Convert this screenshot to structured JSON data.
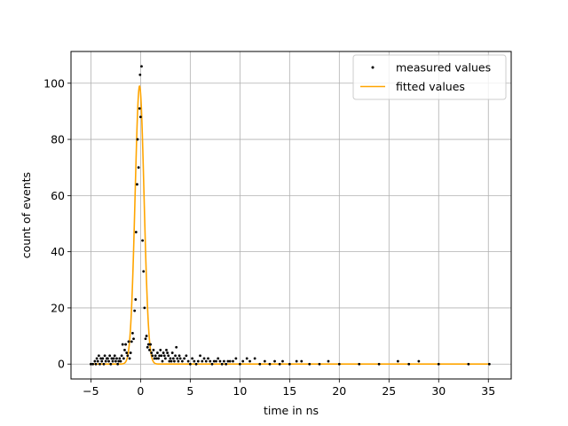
{
  "chart_data": {
    "type": "scatter",
    "xlabel": "time in ns",
    "ylabel": "count of events",
    "xlim": [
      -7.0,
      37.3
    ],
    "ylim": [
      -5.3,
      111.3
    ],
    "xticks": [
      -5,
      0,
      5,
      10,
      15,
      20,
      25,
      30,
      35
    ],
    "yticks": [
      0,
      20,
      40,
      60,
      80,
      100
    ],
    "grid": true,
    "legend_position": "top-right",
    "colors": {
      "measured": "#000000",
      "fitted": "#ffa500",
      "grid": "#b0b0b0"
    },
    "series": [
      {
        "name": "measured values",
        "type": "scatter",
        "points": [
          [
            -5.0,
            0
          ],
          [
            -4.8,
            0
          ],
          [
            -4.6,
            1
          ],
          [
            -4.5,
            0
          ],
          [
            -4.4,
            2
          ],
          [
            -4.3,
            1
          ],
          [
            -4.2,
            3
          ],
          [
            -4.1,
            0
          ],
          [
            -4.0,
            2
          ],
          [
            -3.9,
            1
          ],
          [
            -3.8,
            2
          ],
          [
            -3.7,
            0
          ],
          [
            -3.6,
            3
          ],
          [
            -3.5,
            1
          ],
          [
            -3.4,
            2
          ],
          [
            -3.3,
            2
          ],
          [
            -3.2,
            1
          ],
          [
            -3.1,
            3
          ],
          [
            -3.0,
            0
          ],
          [
            -2.9,
            2
          ],
          [
            -2.8,
            1
          ],
          [
            -2.7,
            2
          ],
          [
            -2.6,
            3
          ],
          [
            -2.5,
            1
          ],
          [
            -2.4,
            2
          ],
          [
            -2.3,
            0
          ],
          [
            -2.2,
            1
          ],
          [
            -2.1,
            2
          ],
          [
            -2.0,
            1
          ],
          [
            -1.9,
            3
          ],
          [
            -1.8,
            7
          ],
          [
            -1.7,
            2
          ],
          [
            -1.6,
            5
          ],
          [
            -1.5,
            7
          ],
          [
            -1.4,
            4
          ],
          [
            -1.3,
            3
          ],
          [
            -1.2,
            8
          ],
          [
            -1.1,
            2
          ],
          [
            -1.0,
            4
          ],
          [
            -0.9,
            8
          ],
          [
            -0.8,
            11
          ],
          [
            -0.7,
            9
          ],
          [
            -0.6,
            19
          ],
          [
            -0.5,
            23
          ],
          [
            -0.45,
            47
          ],
          [
            -0.35,
            64
          ],
          [
            -0.3,
            80
          ],
          [
            -0.2,
            70
          ],
          [
            -0.1,
            91
          ],
          [
            -0.05,
            103
          ],
          [
            0.0,
            88
          ],
          [
            0.1,
            106
          ],
          [
            0.2,
            44
          ],
          [
            0.3,
            33
          ],
          [
            0.4,
            20
          ],
          [
            0.5,
            9
          ],
          [
            0.6,
            10
          ],
          [
            0.7,
            6
          ],
          [
            0.8,
            7
          ],
          [
            0.9,
            5
          ],
          [
            1.0,
            7
          ],
          [
            1.1,
            4
          ],
          [
            1.2,
            3
          ],
          [
            1.3,
            5
          ],
          [
            1.4,
            2
          ],
          [
            1.5,
            3
          ],
          [
            1.6,
            2
          ],
          [
            1.7,
            4
          ],
          [
            1.8,
            2
          ],
          [
            1.9,
            3
          ],
          [
            2.0,
            5
          ],
          [
            2.1,
            3
          ],
          [
            2.2,
            1
          ],
          [
            2.3,
            4
          ],
          [
            2.4,
            3
          ],
          [
            2.5,
            2
          ],
          [
            2.6,
            5
          ],
          [
            2.7,
            4
          ],
          [
            2.8,
            3
          ],
          [
            2.9,
            1
          ],
          [
            3.0,
            2
          ],
          [
            3.1,
            1
          ],
          [
            3.2,
            4
          ],
          [
            3.3,
            2
          ],
          [
            3.4,
            1
          ],
          [
            3.5,
            3
          ],
          [
            3.6,
            6
          ],
          [
            3.7,
            2
          ],
          [
            3.8,
            1
          ],
          [
            3.9,
            3
          ],
          [
            4.0,
            2
          ],
          [
            4.2,
            1
          ],
          [
            4.4,
            2
          ],
          [
            4.6,
            3
          ],
          [
            4.8,
            1
          ],
          [
            5.0,
            0
          ],
          [
            5.2,
            2
          ],
          [
            5.4,
            1
          ],
          [
            5.6,
            0
          ],
          [
            5.8,
            1
          ],
          [
            6.0,
            3
          ],
          [
            6.2,
            1
          ],
          [
            6.4,
            2
          ],
          [
            6.6,
            1
          ],
          [
            6.8,
            2
          ],
          [
            7.0,
            1
          ],
          [
            7.2,
            0
          ],
          [
            7.4,
            1
          ],
          [
            7.6,
            1
          ],
          [
            7.8,
            2
          ],
          [
            8.0,
            1
          ],
          [
            8.2,
            0
          ],
          [
            8.4,
            1
          ],
          [
            8.6,
            0
          ],
          [
            8.8,
            1
          ],
          [
            9.0,
            1
          ],
          [
            9.3,
            1
          ],
          [
            9.6,
            2
          ],
          [
            10.0,
            0
          ],
          [
            10.3,
            1
          ],
          [
            10.7,
            2
          ],
          [
            11.0,
            1
          ],
          [
            11.5,
            2
          ],
          [
            12.0,
            0
          ],
          [
            12.5,
            1
          ],
          [
            13.0,
            0
          ],
          [
            13.5,
            1
          ],
          [
            14.0,
            0
          ],
          [
            14.3,
            1
          ],
          [
            15.0,
            0
          ],
          [
            15.7,
            1
          ],
          [
            16.2,
            1
          ],
          [
            17.0,
            0
          ],
          [
            18.0,
            0
          ],
          [
            18.9,
            1
          ],
          [
            20.0,
            0
          ],
          [
            22.0,
            0
          ],
          [
            24.0,
            0
          ],
          [
            25.9,
            1
          ],
          [
            27.0,
            0
          ],
          [
            28.0,
            1
          ],
          [
            30.0,
            0
          ],
          [
            33.0,
            0
          ],
          [
            35.1,
            0
          ]
        ]
      },
      {
        "name": "fitted values",
        "type": "line",
        "model": "gaussian",
        "amplitude": 99,
        "center": -0.1,
        "sigma": 0.45,
        "x_range": [
          -5.0,
          35.2
        ]
      }
    ]
  }
}
